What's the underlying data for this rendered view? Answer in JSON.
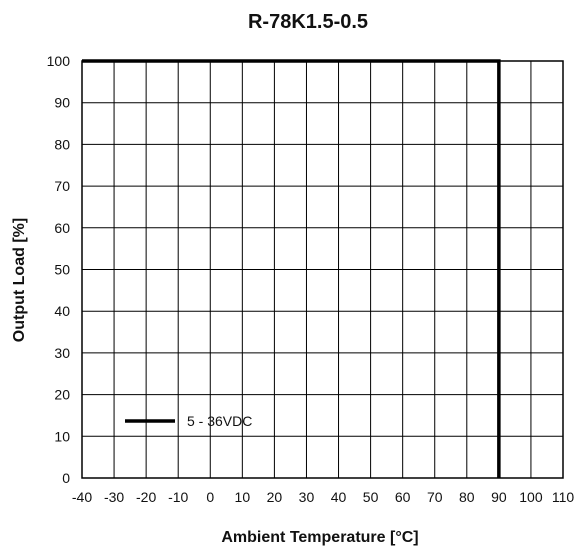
{
  "chart_data": {
    "type": "line",
    "title": "R-78K1.5-0.5",
    "xlabel": "Ambient Temperature [°C]",
    "ylabel": "Output Load [%]",
    "xlim": [
      -40,
      110
    ],
    "ylim": [
      0,
      100
    ],
    "x_ticks": [
      -40,
      -30,
      -20,
      -10,
      0,
      10,
      20,
      30,
      40,
      50,
      60,
      70,
      80,
      90,
      100,
      110
    ],
    "y_ticks": [
      0,
      10,
      20,
      30,
      40,
      50,
      60,
      70,
      80,
      90,
      100
    ],
    "x_tick_labels": [
      "-40",
      "-30",
      "-20",
      "-10",
      "0",
      "10",
      "20",
      "30",
      "40",
      "50",
      "60",
      "70",
      "80",
      "90",
      "100",
      "110"
    ],
    "y_tick_labels": [
      "0",
      "10",
      "20",
      "30",
      "40",
      "50",
      "60",
      "70",
      "80",
      "90",
      "100"
    ],
    "grid": true,
    "legend_position": "bottom-left",
    "series": [
      {
        "name": "5 - 36VDC",
        "color": "#000000",
        "x": [
          -40,
          90,
          90
        ],
        "y": [
          100,
          100,
          0
        ]
      }
    ]
  }
}
